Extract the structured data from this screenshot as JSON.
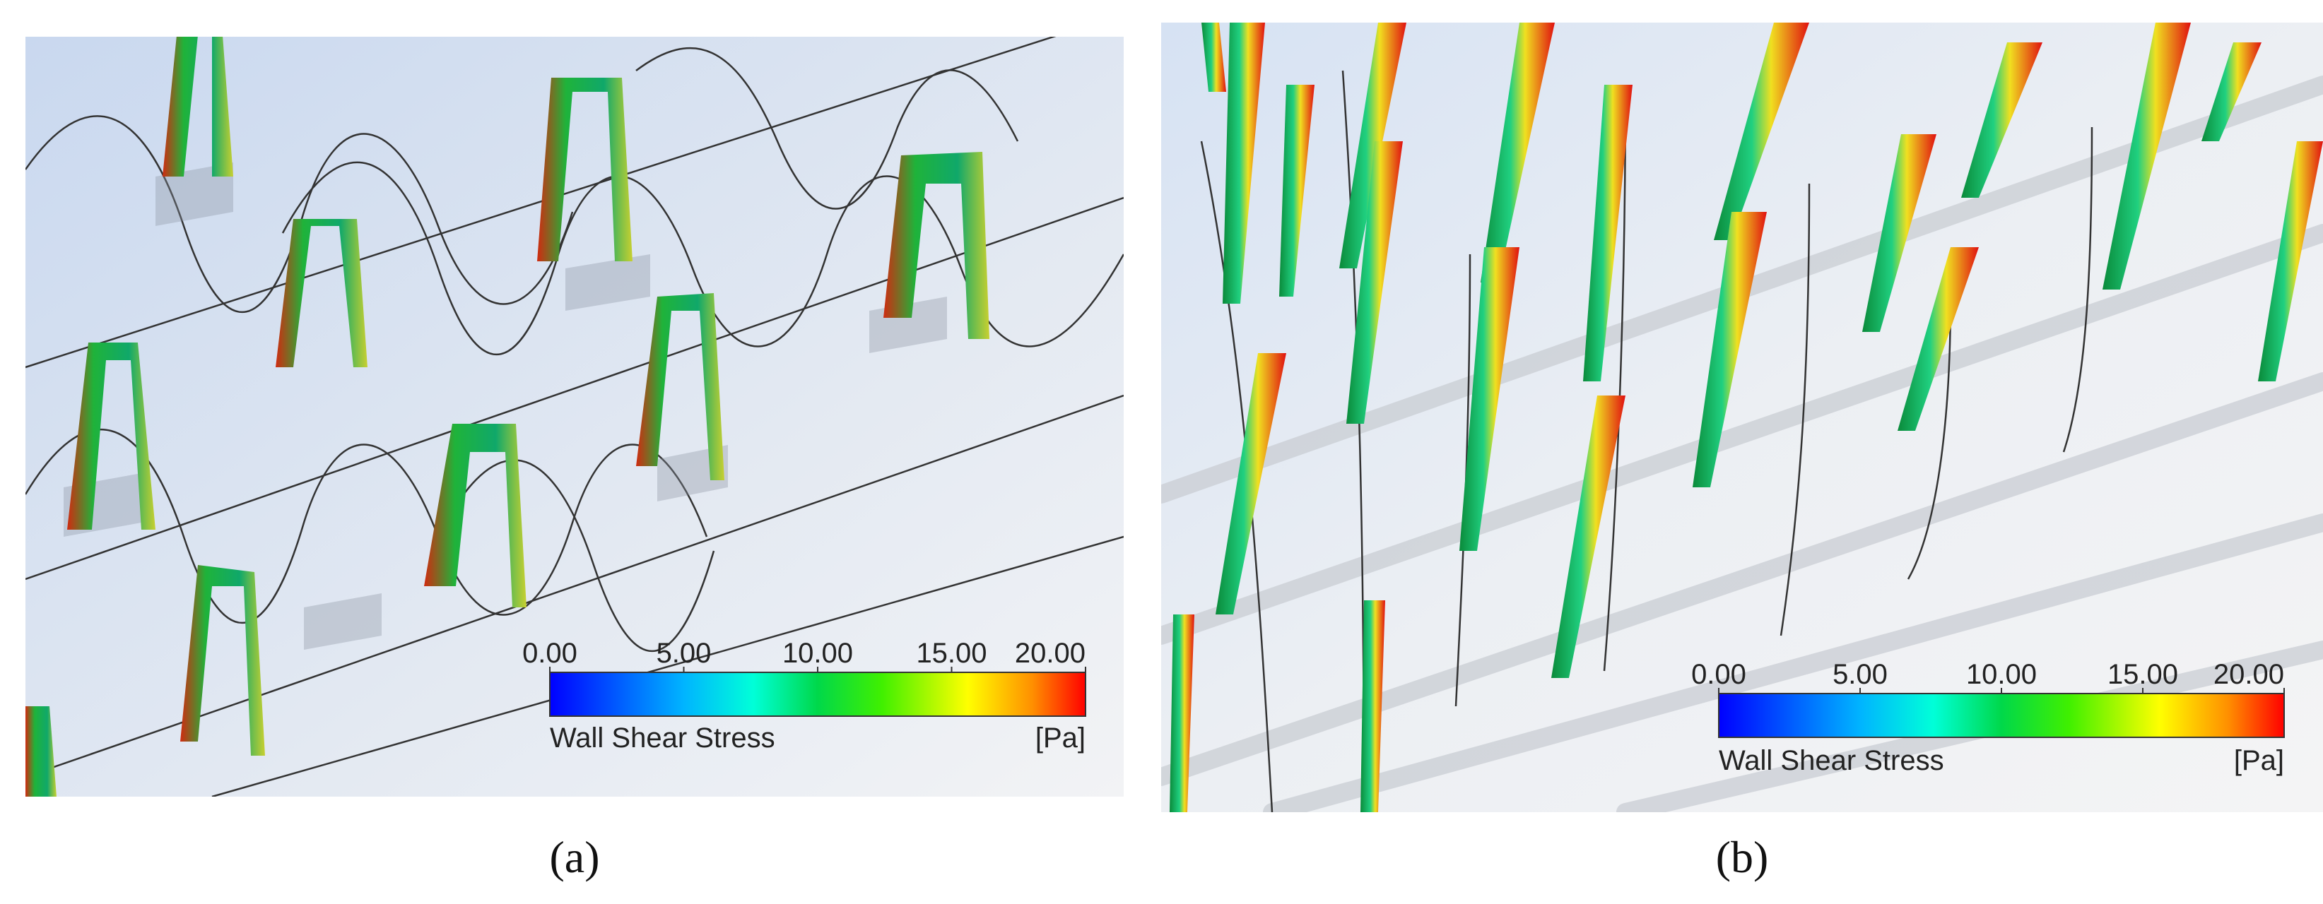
{
  "panels": [
    {
      "caption": "(a)",
      "colorbar": {
        "title": "Wall Shear Stress",
        "unit": "[Pa]",
        "lim": [
          0,
          20
        ],
        "ticks": [
          {
            "value": 0,
            "label": "0.00"
          },
          {
            "value": 5,
            "label": "5.00"
          },
          {
            "value": 10,
            "label": "10.00"
          },
          {
            "value": 15,
            "label": "15.00"
          },
          {
            "value": 20,
            "label": "20.00"
          }
        ]
      }
    },
    {
      "caption": "(b)",
      "colorbar": {
        "title": "Wall Shear Stress",
        "unit": "[Pa]",
        "lim": [
          0,
          20
        ],
        "ticks": [
          {
            "value": 0,
            "label": "0.00"
          },
          {
            "value": 5,
            "label": "5.00"
          },
          {
            "value": 10,
            "label": "10.00"
          },
          {
            "value": 15,
            "label": "15.00"
          },
          {
            "value": 20,
            "label": "20.00"
          }
        ]
      }
    }
  ]
}
